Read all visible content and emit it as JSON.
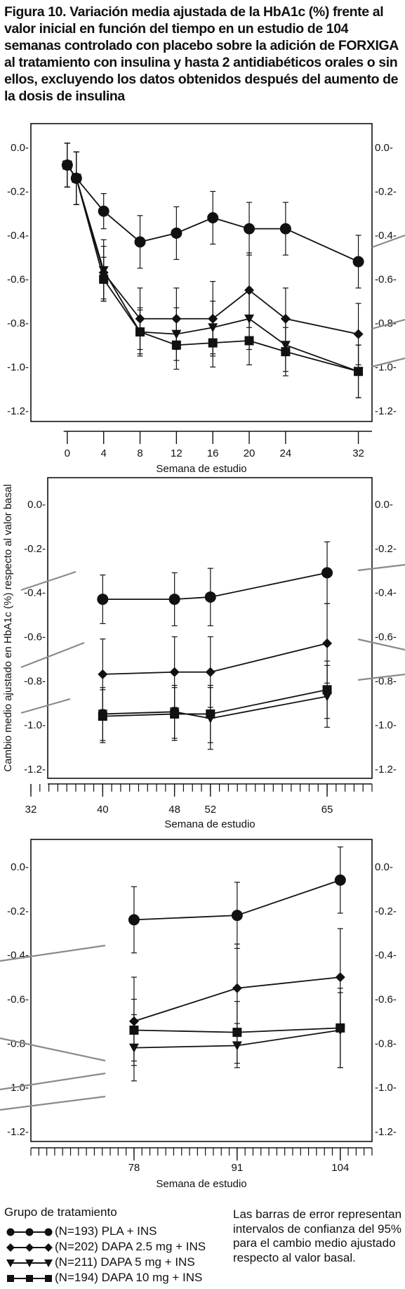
{
  "title": "Figura 10. Variación media ajustada de la HbA1c (%) frente al valor inicial en función del tiempo en un estudio de 104 semanas controlado con placebo sobre la adición de FORXIGA al tratamiento con insulina y hasta 2 antidiabéticos orales o sin ellos, excluyendo los datos obtenidos después del aumento de la dosis de insulina",
  "legend": {
    "title": "Grupo de tratamiento",
    "items": [
      {
        "label": "(N=193) PLA + INS",
        "marker": "circle"
      },
      {
        "label": "(N=202) DAPA 2.5 mg  + INS",
        "marker": "diamond"
      },
      {
        "label": "(N=211) DAPA 5 mg + INS",
        "marker": "triangle-down"
      },
      {
        "label": "(N=194) DAPA 10 mg + INS",
        "marker": "square"
      }
    ],
    "note": "Las barras de error representan intervalos de confianza del 95% para el cambio medio ajustado respecto al valor basal."
  },
  "chart_data": [
    {
      "type": "line",
      "title": "",
      "xlabel": "Semana de estudio",
      "ylabel": "",
      "x_ticks": [
        0,
        4,
        8,
        12,
        16,
        20,
        24,
        32
      ],
      "xlim": [
        -4,
        33.5
      ],
      "ylim": [
        -1.25,
        0.1
      ],
      "y_ticks": [
        "0.0-",
        "-0.2-",
        "-0.4-",
        "-0.6-",
        "-0.8-",
        "-1.0-",
        "-1.2-"
      ],
      "y_tick_values": [
        0.0,
        -0.2,
        -0.4,
        -0.6,
        -0.8,
        -1.0,
        -1.2
      ],
      "series": [
        {
          "name": "PLA + INS",
          "marker": "circle",
          "x": [
            0,
            1,
            4,
            8,
            12,
            16,
            20,
            24,
            32
          ],
          "y": [
            -0.08,
            -0.14,
            -0.29,
            -0.43,
            -0.39,
            -0.32,
            -0.37,
            -0.37,
            -0.52
          ],
          "err": [
            0.1,
            0.12,
            0.08,
            0.12,
            0.12,
            0.12,
            0.12,
            0.12,
            0.12
          ]
        },
        {
          "name": "DAPA 2.5 mg + INS",
          "marker": "diamond",
          "x": [
            0,
            1,
            4,
            8,
            12,
            16,
            20,
            24,
            32
          ],
          "y": [
            -0.08,
            -0.14,
            -0.57,
            -0.78,
            -0.78,
            -0.78,
            -0.65,
            -0.78,
            -0.85
          ],
          "err": [
            0.1,
            0.12,
            0.12,
            0.14,
            0.14,
            0.17,
            0.17,
            0.14,
            0.14
          ]
        },
        {
          "name": "DAPA 5 mg + INS",
          "marker": "triangle-down",
          "x": [
            0,
            1,
            4,
            8,
            12,
            16,
            20,
            24,
            32
          ],
          "y": [
            -0.08,
            -0.14,
            -0.56,
            -0.84,
            -0.85,
            -0.82,
            -0.78,
            -0.9,
            -1.02
          ],
          "err": [
            0.1,
            0.12,
            0.14,
            0.11,
            0.12,
            0.12,
            0.14,
            0.12,
            0.12
          ]
        },
        {
          "name": "DAPA 10 mg + INS",
          "marker": "square",
          "x": [
            0,
            1,
            4,
            8,
            12,
            16,
            20,
            24,
            32
          ],
          "y": [
            -0.08,
            -0.14,
            -0.6,
            -0.84,
            -0.9,
            -0.89,
            -0.88,
            -0.93,
            -1.02
          ],
          "err": [
            0.1,
            0.12,
            0.1,
            0.1,
            0.11,
            0.11,
            0.11,
            0.11,
            0.12
          ]
        }
      ]
    },
    {
      "type": "line",
      "title": "",
      "xlabel": "Semana de estudio",
      "ylabel": "Cambio medio ajustado en HbA1c (%) respecto al valor basal",
      "x_ticks": [
        32,
        40,
        48,
        52,
        65
      ],
      "xlim": [
        32,
        70
      ],
      "ylim": [
        -1.27,
        0.1
      ],
      "y_ticks": [
        "0.0-",
        "-0.2-",
        "-0.4-",
        "-0.6-",
        "-0.8-",
        "-1.0-",
        "-1.2-"
      ],
      "y_tick_values": [
        0.0,
        -0.2,
        -0.4,
        -0.6,
        -0.8,
        -1.0,
        -1.2
      ],
      "series": [
        {
          "name": "PLA + INS",
          "marker": "circle",
          "x": [
            40,
            48,
            52,
            65
          ],
          "y": [
            -0.43,
            -0.43,
            -0.42,
            -0.31
          ],
          "err": [
            0.11,
            0.12,
            0.13,
            0.14
          ]
        },
        {
          "name": "DAPA 2.5 mg + INS",
          "marker": "diamond",
          "x": [
            40,
            48,
            52,
            65
          ],
          "y": [
            -0.77,
            -0.76,
            -0.76,
            -0.63
          ],
          "err": [
            0.16,
            0.16,
            0.16,
            0.18
          ]
        },
        {
          "name": "DAPA 5 mg + INS",
          "marker": "triangle-down",
          "x": [
            40,
            48,
            52,
            65
          ],
          "y": [
            -0.95,
            -0.94,
            -0.97,
            -0.87
          ],
          "err": [
            0.12,
            0.12,
            0.14,
            0.14
          ]
        },
        {
          "name": "DAPA 10 mg + INS",
          "marker": "square",
          "x": [
            40,
            48,
            52,
            65
          ],
          "y": [
            -0.96,
            -0.95,
            -0.95,
            -0.84
          ],
          "err": [
            0.12,
            0.12,
            0.13,
            0.13
          ]
        }
      ]
    },
    {
      "type": "line",
      "title": "",
      "xlabel": "Semana de estudio",
      "ylabel": "",
      "x_ticks": [
        78,
        91,
        104
      ],
      "xlim": [
        65,
        108
      ],
      "ylim": [
        -1.25,
        0.1
      ],
      "y_ticks": [
        "0.0-",
        "-0.2-",
        "-0.4-",
        "-0.6-",
        "-0.8-",
        "-1.0-",
        "-1.2-"
      ],
      "y_tick_values": [
        0.0,
        -0.2,
        -0.4,
        -0.6,
        -0.8,
        -1.0,
        -1.2
      ],
      "series": [
        {
          "name": "PLA + INS",
          "marker": "circle",
          "x": [
            78,
            91,
            104
          ],
          "y": [
            -0.24,
            -0.22,
            -0.06
          ],
          "err": [
            0.15,
            0.15,
            0.15
          ]
        },
        {
          "name": "DAPA 2.5 mg + INS",
          "marker": "diamond",
          "x": [
            78,
            91,
            104
          ],
          "y": [
            -0.7,
            -0.55,
            -0.5
          ],
          "err": [
            0.2,
            0.2,
            0.22
          ]
        },
        {
          "name": "DAPA 5 mg + INS",
          "marker": "triangle-down",
          "x": [
            78,
            91,
            104
          ],
          "y": [
            -0.82,
            -0.81,
            -0.74
          ],
          "err": [
            0.15,
            0.1,
            0.17
          ]
        },
        {
          "name": "DAPA 10 mg + INS",
          "marker": "square",
          "x": [
            78,
            91,
            104
          ],
          "y": [
            -0.74,
            -0.75,
            -0.73
          ],
          "err": [
            0.14,
            0.14,
            0.18
          ]
        }
      ]
    }
  ]
}
